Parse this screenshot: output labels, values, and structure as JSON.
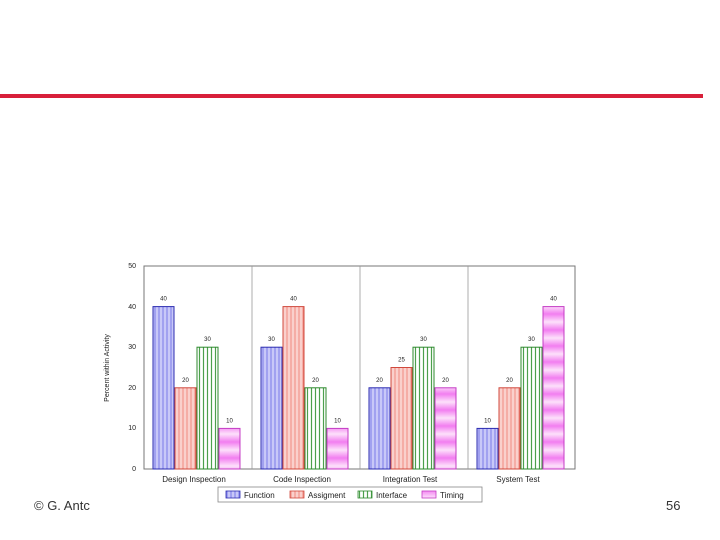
{
  "slide": {
    "accent_color": "#d8203a",
    "footer_left": "© G. Antc",
    "page_number": "56"
  },
  "chart_data": {
    "type": "bar",
    "title": "",
    "xlabel": "",
    "ylabel": "Percent within Activity",
    "ylim": [
      0,
      50
    ],
    "yticks": [
      "0",
      "10",
      "20",
      "30",
      "40",
      "50"
    ],
    "grid": false,
    "legend_position": "bottom",
    "categories": [
      "Design Inspection",
      "Code Inspection",
      "Integration Test",
      "System Test"
    ],
    "series": [
      {
        "name": "Function",
        "color": "#8888ee",
        "stroke": "#2b2bb0",
        "values": [
          40,
          30,
          20,
          10
        ],
        "labels": [
          "40",
          "30",
          "20",
          "10"
        ]
      },
      {
        "name": "Assigment",
        "color": "#f4a6a0",
        "stroke": "#d0483c",
        "values": [
          20,
          40,
          25,
          20
        ],
        "labels": [
          "20",
          "40",
          "25",
          "20"
        ]
      },
      {
        "name": "Interface",
        "color": "#a6e0a0",
        "stroke": "#2e8a2e",
        "values": [
          30,
          20,
          30,
          30
        ],
        "labels": [
          "30",
          "20",
          "30",
          "30"
        ]
      },
      {
        "name": "Timing",
        "color": "#f7a0f0",
        "stroke": "#c43cc4",
        "values": [
          10,
          10,
          20,
          40
        ],
        "labels": [
          "10",
          "10",
          "20",
          "40"
        ]
      }
    ]
  }
}
